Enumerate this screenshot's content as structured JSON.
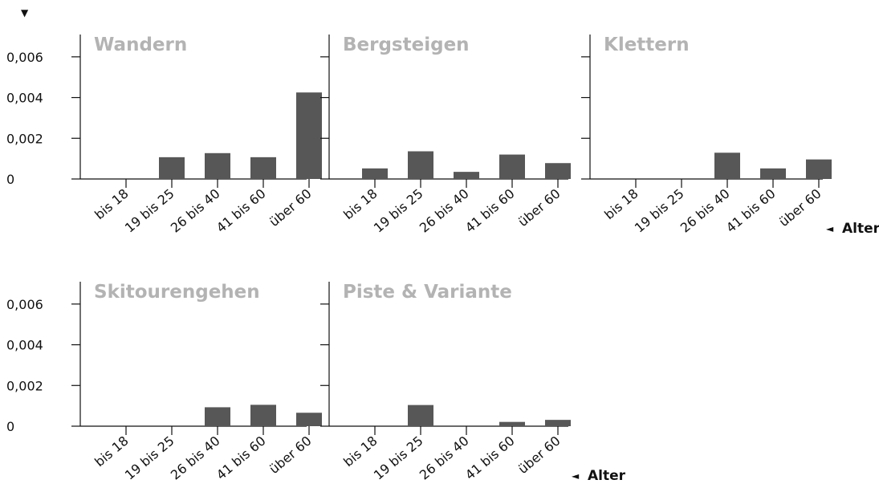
{
  "y_marker": "▼",
  "x_marker": "◄",
  "x_axis_word": "Alter",
  "y_tick_labels": [
    "0",
    "0,002",
    "0,004",
    "0,006"
  ],
  "bar_color": "#575757",
  "title_color": "#b3b3b3",
  "chart_data": [
    {
      "type": "bar",
      "title": "Wandern",
      "categories": [
        "bis 18",
        "19 bis 25",
        "26 bis 40",
        "41 bis 60",
        "über 60"
      ],
      "values": [
        0,
        0.00107,
        0.00127,
        0.00107,
        0.00425
      ],
      "ylim": [
        0,
        0.0069
      ],
      "yticks": [
        0,
        0.002,
        0.004,
        0.006
      ],
      "xlabel": "",
      "ylabel": ""
    },
    {
      "type": "bar",
      "title": "Bergsteigen",
      "categories": [
        "bis 18",
        "19 bis 25",
        "26 bis 40",
        "41 bis 60",
        "über 60"
      ],
      "values": [
        0.00052,
        0.00136,
        0.00035,
        0.0012,
        0.00078
      ],
      "ylim": [
        0,
        0.0069
      ],
      "yticks": [
        0,
        0.002,
        0.004,
        0.006
      ],
      "xlabel": "",
      "ylabel": ""
    },
    {
      "type": "bar",
      "title": "Klettern",
      "categories": [
        "bis 18",
        "19 bis 25",
        "26 bis 40",
        "41 bis 60",
        "über 60"
      ],
      "values": [
        0,
        0,
        0.00129,
        0.00052,
        0.00096
      ],
      "ylim": [
        0,
        0.0069
      ],
      "yticks": [
        0,
        0.002,
        0.004,
        0.006
      ],
      "xlabel": "Alter",
      "ylabel": ""
    },
    {
      "type": "bar",
      "title": "Skitourengehen",
      "categories": [
        "bis 18",
        "19 bis 25",
        "26 bis 40",
        "41 bis 60",
        "über 60"
      ],
      "values": [
        0,
        0,
        0.00093,
        0.00105,
        0.00066
      ],
      "ylim": [
        0,
        0.0069
      ],
      "yticks": [
        0,
        0.002,
        0.004,
        0.006
      ],
      "xlabel": "",
      "ylabel": ""
    },
    {
      "type": "bar",
      "title": "Piste & Variante",
      "categories": [
        "bis 18",
        "19 bis 25",
        "26 bis 40",
        "41 bis 60",
        "über 60"
      ],
      "values": [
        0,
        0.00104,
        0,
        0.00021,
        0.00031
      ],
      "ylim": [
        0,
        0.0069
      ],
      "yticks": [
        0,
        0.002,
        0.004,
        0.006
      ],
      "xlabel": "Alter",
      "ylabel": ""
    }
  ]
}
